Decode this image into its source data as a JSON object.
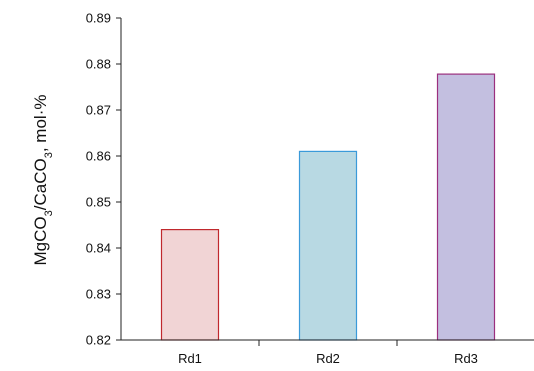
{
  "chart_data": {
    "type": "bar",
    "categories": [
      "Rd1",
      "Rd2",
      "Rd3"
    ],
    "values": [
      0.844,
      0.861,
      0.8778
    ],
    "ylim": [
      0.82,
      0.89
    ],
    "yticks": [
      "0.82",
      "0.83",
      "0.84",
      "0.85",
      "0.86",
      "0.87",
      "0.88",
      "0.89"
    ],
    "ylabel": {
      "part1": "MgCO",
      "sub1": "3",
      "part2": "/CaCO",
      "sub2": "3",
      "part3": ", mol·%"
    },
    "xlabel": "",
    "grid": false,
    "legend": "none",
    "bar_fills": [
      "#f1d4d5",
      "#b8d9e3",
      "#c3bfe0"
    ],
    "bar_strokes": [
      "#c0282d",
      "#3a9ad9",
      "#9b2f7e"
    ]
  }
}
